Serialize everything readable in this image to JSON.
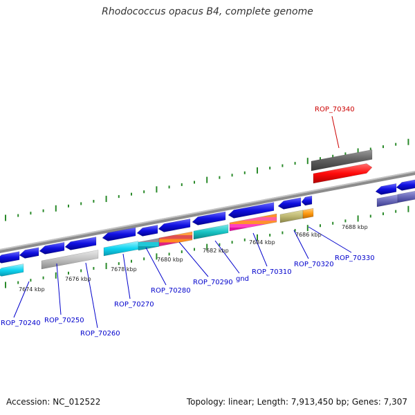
{
  "title": "Rhodococcus opacus B4, complete genome",
  "footer": {
    "accession": "Accession: NC_012522",
    "stats": "Topology: linear; Length: 7,913,450 bp; Genes: 7,307"
  },
  "colors": {
    "cds": "#1a1ae0",
    "highlight": "#ff0a0a",
    "backbone": "#8c8c8c",
    "ticks": "#2a8a2a",
    "label_blue": "#0000cc",
    "label_red": "#cc0000"
  },
  "ticks": [
    {
      "label": "7674 kbp"
    },
    {
      "label": "7676 kbp"
    },
    {
      "label": "7678 kbp"
    },
    {
      "label": "7680 kbp"
    },
    {
      "label": "7682 kbp"
    },
    {
      "label": "7684 kbp"
    },
    {
      "label": "7686 kbp"
    },
    {
      "label": "7688 kbp"
    }
  ],
  "genes": [
    {
      "label": "ROP_70240"
    },
    {
      "label": "ROP_70250"
    },
    {
      "label": "ROP_70260"
    },
    {
      "label": "ROP_70270"
    },
    {
      "label": "ROP_70280"
    },
    {
      "label": "ROP_70290"
    },
    {
      "label": "gnd"
    },
    {
      "label": "ROP_70310"
    },
    {
      "label": "ROP_70320"
    },
    {
      "label": "ROP_70330"
    },
    {
      "label": "ROP_70340"
    }
  ]
}
